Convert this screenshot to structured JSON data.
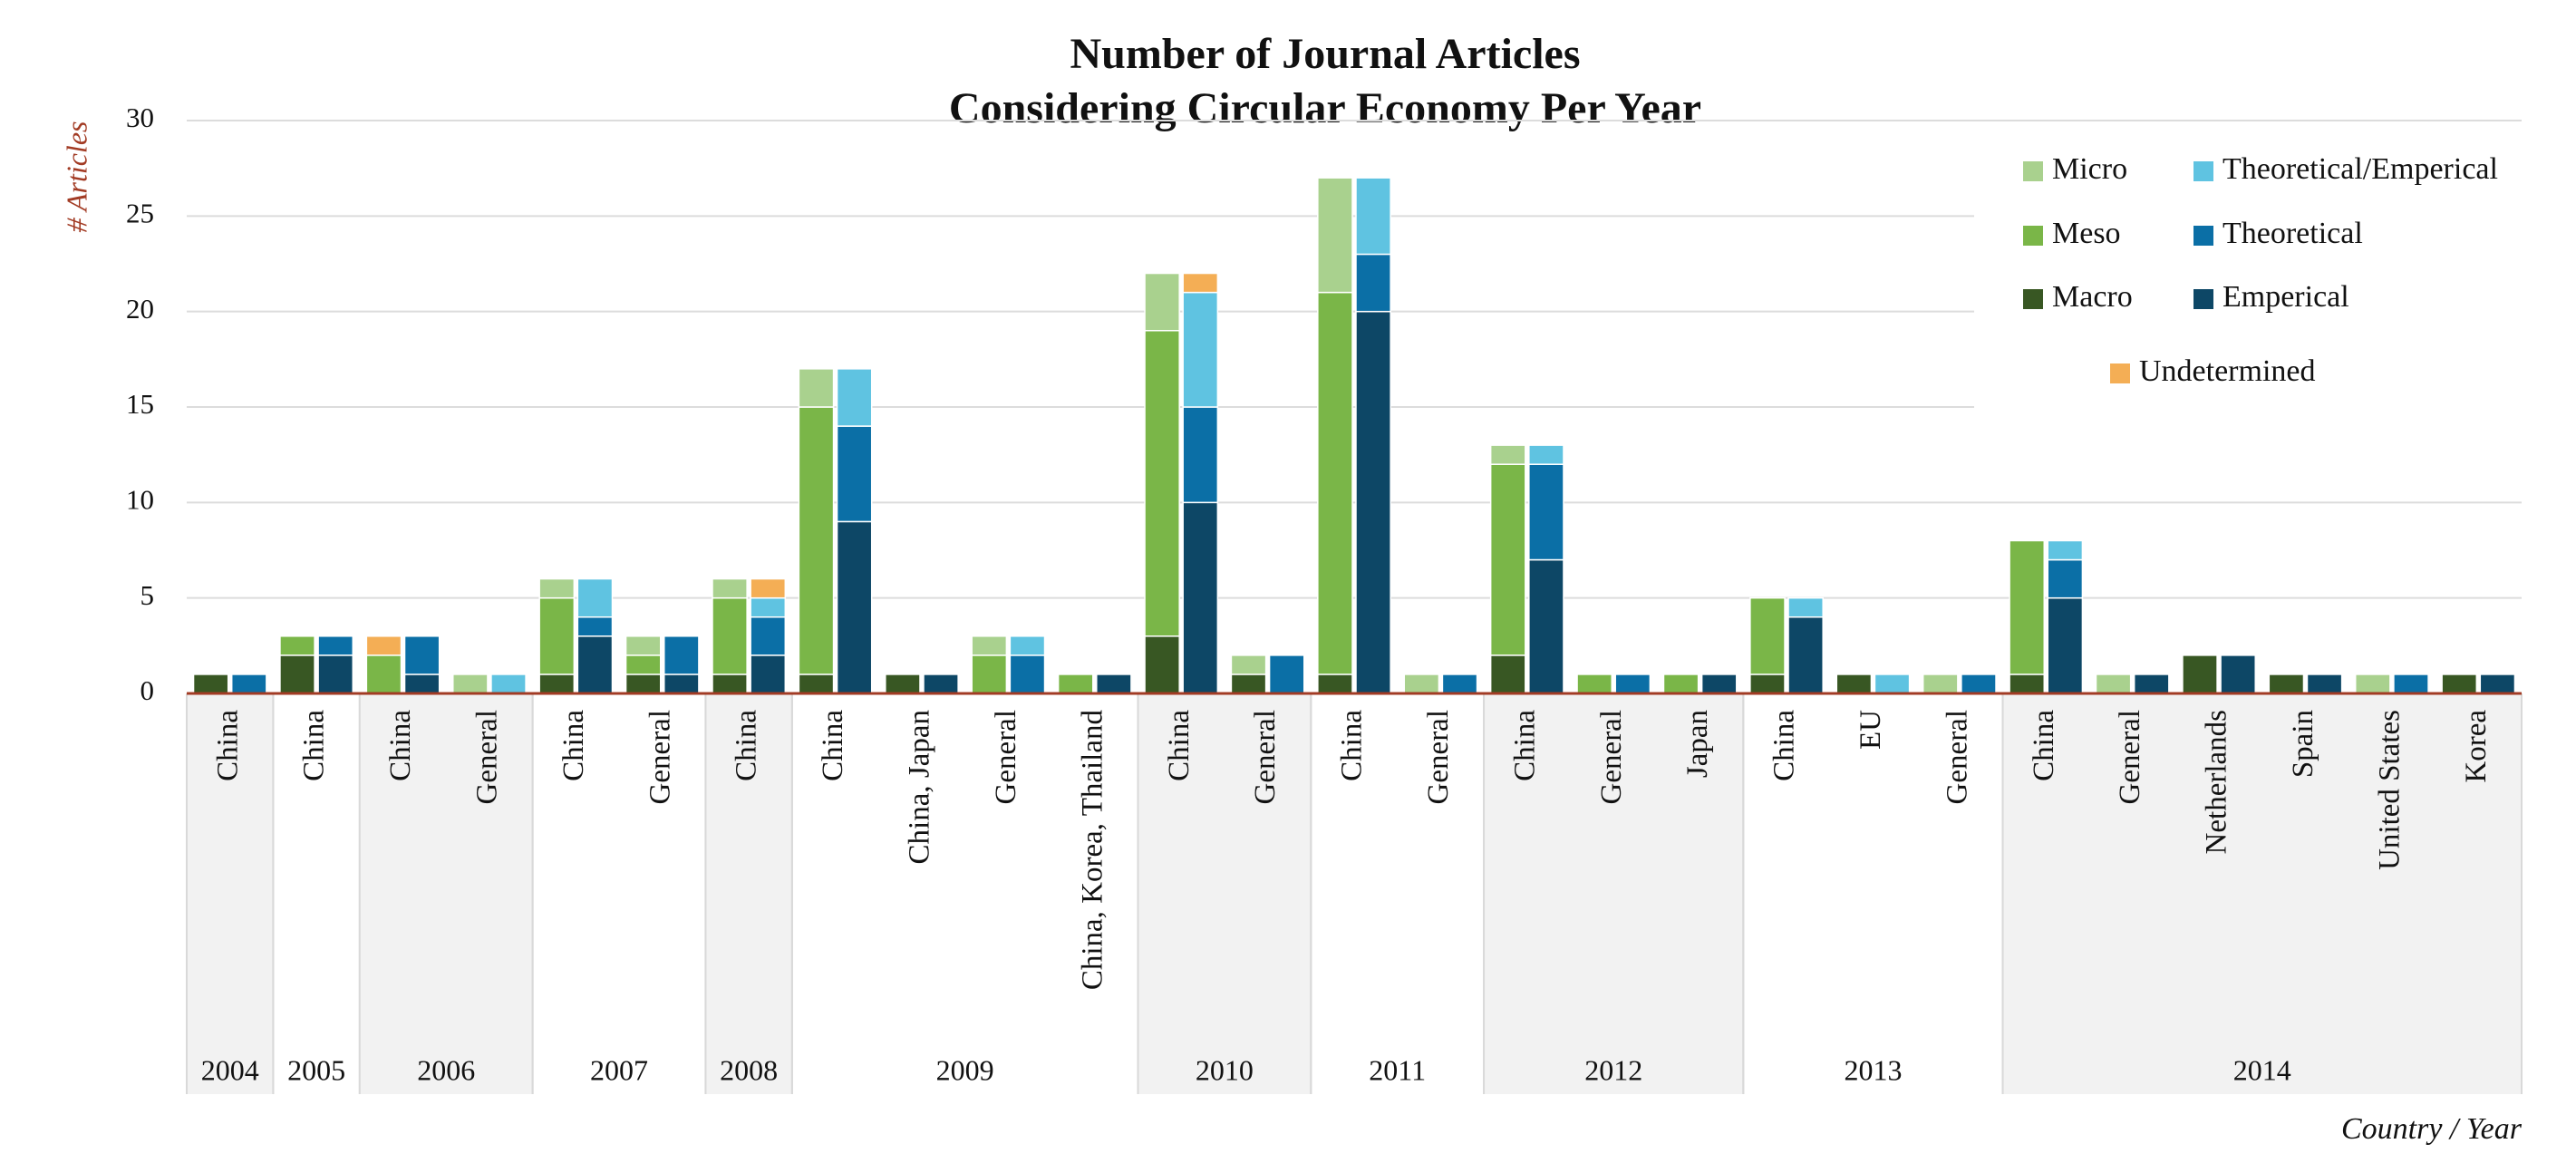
{
  "chart_data": {
    "type": "grouped-stacked-bar",
    "title": [
      "Number of Journal Articles",
      "Considering Circular Economy Per Year"
    ],
    "y_label": "# Articles",
    "x_label": "Country / Year",
    "ylim": [
      0,
      30
    ],
    "yticks": [
      0,
      5,
      10,
      15,
      20,
      25,
      30
    ],
    "grid": true,
    "categories": [
      "China",
      "China",
      "China",
      "General",
      "China",
      "General",
      "China",
      "China",
      "China, Japan",
      "General",
      "China, Korea, Thailand",
      "China",
      "General",
      "China",
      "General",
      "China",
      "General",
      "Japan",
      "China",
      "EU",
      "General",
      "China",
      "General",
      "Netherlands",
      "Spain",
      "United States",
      "Korea"
    ],
    "groups": [
      {
        "label": "2004",
        "count": 1
      },
      {
        "label": "2005",
        "count": 1
      },
      {
        "label": "2006",
        "count": 2
      },
      {
        "label": "2007",
        "count": 2
      },
      {
        "label": "2008",
        "count": 1
      },
      {
        "label": "2009",
        "count": 4
      },
      {
        "label": "2010",
        "count": 2
      },
      {
        "label": "2011",
        "count": 2
      },
      {
        "label": "2012",
        "count": 3
      },
      {
        "label": "2013",
        "count": 3
      },
      {
        "label": "2014",
        "count": 6
      }
    ],
    "series": [
      {
        "name": "Macro",
        "color": "#385723",
        "stack": "left",
        "values": [
          1,
          2,
          0,
          0,
          1,
          1,
          1,
          1,
          1,
          0,
          0,
          3,
          1,
          1,
          0,
          2,
          0,
          0,
          1,
          1,
          0,
          1,
          0,
          2,
          1,
          0,
          1
        ]
      },
      {
        "name": "Meso",
        "color": "#7ab648",
        "stack": "left",
        "values": [
          0,
          1,
          2,
          0,
          4,
          1,
          4,
          14,
          0,
          2,
          1,
          16,
          0,
          20,
          0,
          10,
          1,
          1,
          4,
          0,
          0,
          7,
          0,
          0,
          0,
          0,
          0
        ]
      },
      {
        "name": "Micro",
        "color": "#a9d18e",
        "stack": "left",
        "values": [
          0,
          0,
          0,
          1,
          1,
          1,
          1,
          2,
          0,
          1,
          0,
          3,
          1,
          6,
          1,
          1,
          0,
          0,
          0,
          0,
          1,
          0,
          1,
          0,
          0,
          1,
          0
        ]
      },
      {
        "name": "Emperical",
        "color": "#0d4766",
        "stack": "right",
        "values": [
          0,
          2,
          1,
          0,
          3,
          1,
          2,
          9,
          1,
          0,
          1,
          10,
          0,
          20,
          0,
          7,
          0,
          1,
          4,
          0,
          0,
          5,
          1,
          2,
          1,
          0,
          1
        ]
      },
      {
        "name": "Theoretical",
        "color": "#0b6fa6",
        "stack": "right",
        "values": [
          1,
          1,
          2,
          0,
          1,
          2,
          2,
          5,
          0,
          2,
          0,
          5,
          2,
          3,
          1,
          5,
          1,
          0,
          0,
          0,
          1,
          2,
          0,
          0,
          0,
          1,
          0
        ]
      },
      {
        "name": "Theoretical/Emperical",
        "color": "#5fc3e1",
        "stack": "right",
        "values": [
          0,
          0,
          0,
          1,
          2,
          0,
          1,
          3,
          0,
          1,
          0,
          6,
          0,
          4,
          0,
          1,
          0,
          0,
          1,
          1,
          0,
          1,
          0,
          0,
          0,
          0,
          0
        ]
      },
      {
        "name": "Undetermined",
        "color": "#f4ae55",
        "stack": [
          "left",
          null,
          "left",
          null,
          null,
          null,
          "right",
          null,
          null,
          null,
          null,
          "right",
          null,
          null,
          null,
          null,
          null,
          null,
          null,
          null,
          null,
          null,
          null,
          null,
          null,
          null,
          null
        ],
        "values": [
          0,
          0,
          1,
          0,
          0,
          0,
          1,
          0,
          0,
          0,
          0,
          1,
          0,
          0,
          0,
          0,
          0,
          0,
          0,
          0,
          0,
          0,
          0,
          0,
          0,
          0,
          0
        ]
      }
    ]
  }
}
